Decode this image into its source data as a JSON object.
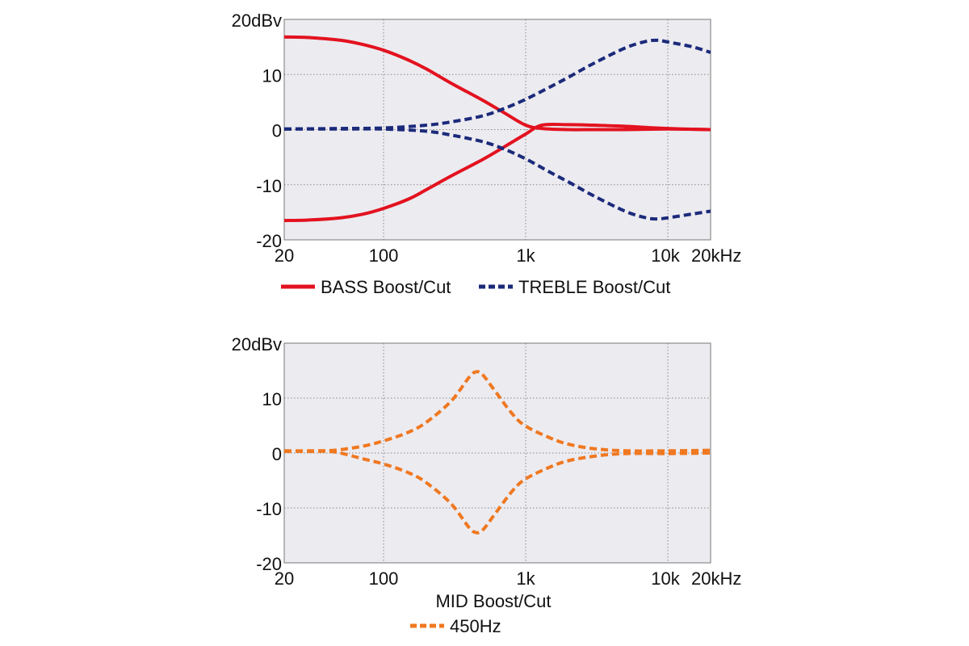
{
  "chart_data": [
    {
      "type": "line",
      "x_scale": "log",
      "xlim": [
        20,
        20000
      ],
      "ylim": [
        -20,
        20
      ],
      "x_ticks": [
        {
          "value": 20,
          "label": "20"
        },
        {
          "value": 100,
          "label": "100"
        },
        {
          "value": 1000,
          "label": "1k"
        },
        {
          "value": 10000,
          "label": "10k"
        },
        {
          "value": 20000,
          "label": "20kHz"
        }
      ],
      "y_ticks": [
        {
          "value": 20,
          "label": "20dBv"
        },
        {
          "value": 10,
          "label": "10"
        },
        {
          "value": 0,
          "label": "0"
        },
        {
          "value": -10,
          "label": "-10"
        },
        {
          "value": -20,
          "label": "-20"
        }
      ],
      "grid": true,
      "legend_placement": "bottom",
      "series": [
        {
          "name": "BASS Boost/Cut",
          "legend": true,
          "color": "#e3121f",
          "dash": false,
          "x": [
            20,
            30,
            50,
            70,
            100,
            150,
            200,
            300,
            500,
            700,
            1000,
            1300,
            2000,
            3000,
            5000,
            10000,
            20000
          ],
          "y": [
            16.8,
            16.7,
            16.2,
            15.5,
            14.4,
            12.6,
            11.0,
            8.4,
            5.3,
            3.1,
            0.8,
            0.2,
            0.0,
            0.0,
            0.0,
            0.1,
            0.0
          ]
        },
        {
          "name": "",
          "legend": false,
          "color": "#e3121f",
          "dash": false,
          "x": [
            20,
            30,
            50,
            70,
            100,
            150,
            200,
            300,
            500,
            700,
            1000,
            1300,
            2000,
            3000,
            5000,
            10000,
            20000
          ],
          "y": [
            -16.5,
            -16.4,
            -16.0,
            -15.4,
            -14.3,
            -12.6,
            -10.9,
            -8.4,
            -5.4,
            -3.2,
            -0.8,
            0.8,
            0.9,
            0.8,
            0.6,
            0.2,
            0.0
          ]
        },
        {
          "name": "TREBLE Boost/Cut",
          "legend": true,
          "color": "#1b2a7a",
          "dash": true,
          "x": [
            20,
            50,
            100,
            200,
            300,
            500,
            700,
            1000,
            1500,
            2000,
            3000,
            5000,
            7000,
            8500,
            10000,
            15000,
            20000
          ],
          "y": [
            0.1,
            0.2,
            0.3,
            0.8,
            1.4,
            2.5,
            3.8,
            5.5,
            7.8,
            9.5,
            12.0,
            14.8,
            16.0,
            16.2,
            15.9,
            15.0,
            14.0
          ]
        },
        {
          "name": "",
          "legend": false,
          "color": "#1b2a7a",
          "dash": true,
          "x": [
            20,
            50,
            100,
            200,
            300,
            500,
            700,
            1000,
            1500,
            2000,
            3000,
            5000,
            7000,
            8500,
            10000,
            15000,
            20000
          ],
          "y": [
            0.1,
            0.1,
            0.1,
            -0.3,
            -1.0,
            -2.2,
            -3.5,
            -5.3,
            -7.8,
            -9.5,
            -12.0,
            -14.8,
            -16.0,
            -16.2,
            -16.0,
            -15.3,
            -14.8
          ]
        }
      ]
    },
    {
      "type": "line",
      "x_scale": "log",
      "xlim": [
        20,
        20000
      ],
      "ylim": [
        -20,
        20
      ],
      "x_ticks": [
        {
          "value": 20,
          "label": "20"
        },
        {
          "value": 100,
          "label": "100"
        },
        {
          "value": 1000,
          "label": "1k"
        },
        {
          "value": 10000,
          "label": "10k"
        },
        {
          "value": 20000,
          "label": "20kHz"
        }
      ],
      "y_ticks": [
        {
          "value": 20,
          "label": "20dBv"
        },
        {
          "value": 10,
          "label": "10"
        },
        {
          "value": 0,
          "label": "0"
        },
        {
          "value": -10,
          "label": "-10"
        },
        {
          "value": -20,
          "label": "-20"
        }
      ],
      "grid": true,
      "legend_placement": "bottom",
      "legend_title": "MID Boost/Cut",
      "series": [
        {
          "name": "450Hz",
          "legend": true,
          "color": "#f07820",
          "dash": true,
          "x": [
            20,
            30,
            45,
            70,
            100,
            150,
            200,
            300,
            400,
            450,
            500,
            600,
            800,
            1000,
            1500,
            2000,
            3000,
            5000,
            10000,
            20000
          ],
          "y": [
            0.4,
            0.4,
            0.5,
            1.2,
            2.2,
            3.8,
            5.6,
            9.5,
            13.8,
            14.8,
            14.2,
            11.5,
            7.2,
            4.9,
            2.7,
            1.6,
            0.8,
            0.4,
            0.4,
            0.5
          ]
        },
        {
          "name": "",
          "legend": false,
          "color": "#f07820",
          "dash": true,
          "x": [
            20,
            30,
            45,
            70,
            100,
            150,
            200,
            300,
            400,
            450,
            500,
            600,
            800,
            1000,
            1500,
            2000,
            3000,
            5000,
            10000,
            20000
          ],
          "y": [
            0.3,
            0.3,
            0.2,
            -1.0,
            -2.0,
            -3.6,
            -5.4,
            -9.3,
            -13.6,
            -14.5,
            -14.0,
            -11.3,
            -7.0,
            -4.7,
            -2.5,
            -1.4,
            -0.6,
            -0.1,
            -0.1,
            0.0
          ]
        }
      ]
    }
  ]
}
